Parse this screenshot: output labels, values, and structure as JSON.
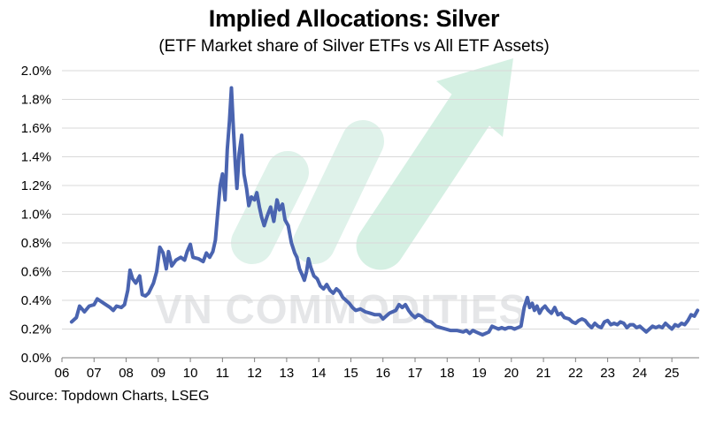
{
  "watermark": {
    "text": "VN COMMODITIES",
    "arrow_color": "#d5f0e3",
    "bar_color": "#dff2ea"
  },
  "chart_data": {
    "type": "line",
    "title": "Implied Allocations: Silver",
    "subtitle": "(ETF Market share of Silver ETFs vs All ETF Assets)",
    "source": "Source: Topdown Charts, LSEG",
    "xlabel": "",
    "ylabel": "",
    "xlim": [
      2006,
      2025.85
    ],
    "ylim": [
      0,
      0.02
    ],
    "x_ticks": [
      "06",
      "07",
      "08",
      "09",
      "10",
      "11",
      "12",
      "13",
      "14",
      "15",
      "16",
      "17",
      "18",
      "19",
      "20",
      "21",
      "22",
      "23",
      "24",
      "25"
    ],
    "y_ticks": [
      "0.0%",
      "0.2%",
      "0.4%",
      "0.6%",
      "0.8%",
      "1.0%",
      "1.2%",
      "1.4%",
      "1.6%",
      "1.8%",
      "2.0%"
    ],
    "y_tick_values": [
      0,
      0.002,
      0.004,
      0.006,
      0.008,
      0.01,
      0.012,
      0.014,
      0.016,
      0.018,
      0.02
    ],
    "grid": true,
    "legend": "none",
    "series": [
      {
        "color": "#4a64b0",
        "points": [
          [
            2006.3,
            0.0025
          ],
          [
            2006.45,
            0.0028
          ],
          [
            2006.55,
            0.0036
          ],
          [
            2006.7,
            0.0032
          ],
          [
            2006.85,
            0.0036
          ],
          [
            2007.0,
            0.0037
          ],
          [
            2007.1,
            0.0041
          ],
          [
            2007.3,
            0.0038
          ],
          [
            2007.5,
            0.0035
          ],
          [
            2007.6,
            0.0033
          ],
          [
            2007.7,
            0.0036
          ],
          [
            2007.85,
            0.0035
          ],
          [
            2007.95,
            0.0037
          ],
          [
            2008.05,
            0.0047
          ],
          [
            2008.12,
            0.0061
          ],
          [
            2008.2,
            0.0055
          ],
          [
            2008.3,
            0.0052
          ],
          [
            2008.42,
            0.0057
          ],
          [
            2008.5,
            0.0044
          ],
          [
            2008.6,
            0.0043
          ],
          [
            2008.7,
            0.0045
          ],
          [
            2008.85,
            0.0052
          ],
          [
            2008.95,
            0.006
          ],
          [
            2009.05,
            0.0077
          ],
          [
            2009.15,
            0.0073
          ],
          [
            2009.25,
            0.0062
          ],
          [
            2009.32,
            0.0074
          ],
          [
            2009.42,
            0.0064
          ],
          [
            2009.55,
            0.0068
          ],
          [
            2009.7,
            0.007
          ],
          [
            2009.82,
            0.0068
          ],
          [
            2009.9,
            0.0074
          ],
          [
            2010.0,
            0.0079
          ],
          [
            2010.08,
            0.007
          ],
          [
            2010.25,
            0.0069
          ],
          [
            2010.4,
            0.0067
          ],
          [
            2010.5,
            0.0073
          ],
          [
            2010.6,
            0.007
          ],
          [
            2010.7,
            0.0074
          ],
          [
            2010.78,
            0.0082
          ],
          [
            2010.85,
            0.01
          ],
          [
            2010.93,
            0.012
          ],
          [
            2011.0,
            0.0128
          ],
          [
            2011.08,
            0.011
          ],
          [
            2011.15,
            0.0145
          ],
          [
            2011.22,
            0.0165
          ],
          [
            2011.28,
            0.0188
          ],
          [
            2011.34,
            0.016
          ],
          [
            2011.4,
            0.0135
          ],
          [
            2011.45,
            0.0118
          ],
          [
            2011.52,
            0.0142
          ],
          [
            2011.6,
            0.0155
          ],
          [
            2011.67,
            0.0128
          ],
          [
            2011.75,
            0.0118
          ],
          [
            2011.82,
            0.0106
          ],
          [
            2011.9,
            0.0112
          ],
          [
            2012.0,
            0.011
          ],
          [
            2012.07,
            0.0115
          ],
          [
            2012.15,
            0.0105
          ],
          [
            2012.22,
            0.0098
          ],
          [
            2012.3,
            0.0092
          ],
          [
            2012.4,
            0.0099
          ],
          [
            2012.5,
            0.0105
          ],
          [
            2012.6,
            0.0095
          ],
          [
            2012.7,
            0.011
          ],
          [
            2012.78,
            0.0103
          ],
          [
            2012.87,
            0.0107
          ],
          [
            2012.95,
            0.0096
          ],
          [
            2013.05,
            0.0092
          ],
          [
            2013.15,
            0.008
          ],
          [
            2013.25,
            0.0073
          ],
          [
            2013.32,
            0.007
          ],
          [
            2013.4,
            0.0062
          ],
          [
            2013.48,
            0.0058
          ],
          [
            2013.55,
            0.0054
          ],
          [
            2013.62,
            0.006
          ],
          [
            2013.68,
            0.0069
          ],
          [
            2013.75,
            0.0063
          ],
          [
            2013.85,
            0.0057
          ],
          [
            2013.95,
            0.0055
          ],
          [
            2014.05,
            0.005
          ],
          [
            2014.15,
            0.0048
          ],
          [
            2014.25,
            0.0051
          ],
          [
            2014.35,
            0.0047
          ],
          [
            2014.45,
            0.0045
          ],
          [
            2014.55,
            0.0048
          ],
          [
            2014.65,
            0.0046
          ],
          [
            2014.75,
            0.0042
          ],
          [
            2014.85,
            0.004
          ],
          [
            2014.95,
            0.0038
          ],
          [
            2015.05,
            0.0035
          ],
          [
            2015.15,
            0.0033
          ],
          [
            2015.3,
            0.0034
          ],
          [
            2015.45,
            0.0032
          ],
          [
            2015.6,
            0.0031
          ],
          [
            2015.75,
            0.003
          ],
          [
            2015.9,
            0.003
          ],
          [
            2016.0,
            0.0027
          ],
          [
            2016.1,
            0.0029
          ],
          [
            2016.2,
            0.0031
          ],
          [
            2016.3,
            0.0032
          ],
          [
            2016.4,
            0.0033
          ],
          [
            2016.5,
            0.0037
          ],
          [
            2016.6,
            0.0035
          ],
          [
            2016.7,
            0.0037
          ],
          [
            2016.8,
            0.0033
          ],
          [
            2016.9,
            0.003
          ],
          [
            2017.0,
            0.0028
          ],
          [
            2017.1,
            0.003
          ],
          [
            2017.2,
            0.0029
          ],
          [
            2017.35,
            0.0026
          ],
          [
            2017.5,
            0.0025
          ],
          [
            2017.65,
            0.0022
          ],
          [
            2017.8,
            0.0021
          ],
          [
            2017.95,
            0.002
          ],
          [
            2018.1,
            0.0019
          ],
          [
            2018.3,
            0.0019
          ],
          [
            2018.5,
            0.0018
          ],
          [
            2018.6,
            0.0019
          ],
          [
            2018.7,
            0.0017
          ],
          [
            2018.8,
            0.0019
          ],
          [
            2018.9,
            0.0018
          ],
          [
            2019.0,
            0.0017
          ],
          [
            2019.1,
            0.0016
          ],
          [
            2019.2,
            0.0017
          ],
          [
            2019.3,
            0.0018
          ],
          [
            2019.4,
            0.0022
          ],
          [
            2019.5,
            0.0021
          ],
          [
            2019.6,
            0.002
          ],
          [
            2019.7,
            0.0021
          ],
          [
            2019.8,
            0.002
          ],
          [
            2019.9,
            0.0021
          ],
          [
            2020.0,
            0.0021
          ],
          [
            2020.1,
            0.002
          ],
          [
            2020.2,
            0.0021
          ],
          [
            2020.3,
            0.0022
          ],
          [
            2020.4,
            0.0035
          ],
          [
            2020.5,
            0.0042
          ],
          [
            2020.57,
            0.0035
          ],
          [
            2020.65,
            0.0038
          ],
          [
            2020.72,
            0.0033
          ],
          [
            2020.8,
            0.0036
          ],
          [
            2020.88,
            0.0031
          ],
          [
            2020.95,
            0.0034
          ],
          [
            2021.05,
            0.0036
          ],
          [
            2021.15,
            0.0033
          ],
          [
            2021.25,
            0.0031
          ],
          [
            2021.35,
            0.0035
          ],
          [
            2021.45,
            0.003
          ],
          [
            2021.55,
            0.0031
          ],
          [
            2021.65,
            0.0028
          ],
          [
            2021.8,
            0.0027
          ],
          [
            2021.9,
            0.0025
          ],
          [
            2022.0,
            0.0024
          ],
          [
            2022.1,
            0.0026
          ],
          [
            2022.2,
            0.0027
          ],
          [
            2022.3,
            0.0026
          ],
          [
            2022.4,
            0.0023
          ],
          [
            2022.5,
            0.0021
          ],
          [
            2022.6,
            0.0024
          ],
          [
            2022.7,
            0.0022
          ],
          [
            2022.8,
            0.0021
          ],
          [
            2022.9,
            0.0025
          ],
          [
            2023.0,
            0.0026
          ],
          [
            2023.1,
            0.0023
          ],
          [
            2023.2,
            0.0024
          ],
          [
            2023.3,
            0.0023
          ],
          [
            2023.4,
            0.0025
          ],
          [
            2023.5,
            0.0024
          ],
          [
            2023.6,
            0.0021
          ],
          [
            2023.7,
            0.0023
          ],
          [
            2023.8,
            0.0023
          ],
          [
            2023.9,
            0.0021
          ],
          [
            2024.0,
            0.0022
          ],
          [
            2024.1,
            0.002
          ],
          [
            2024.2,
            0.0018
          ],
          [
            2024.3,
            0.002
          ],
          [
            2024.4,
            0.0022
          ],
          [
            2024.5,
            0.0021
          ],
          [
            2024.6,
            0.0022
          ],
          [
            2024.7,
            0.0021
          ],
          [
            2024.8,
            0.0024
          ],
          [
            2024.9,
            0.0022
          ],
          [
            2025.0,
            0.002
          ],
          [
            2025.1,
            0.0023
          ],
          [
            2025.2,
            0.0022
          ],
          [
            2025.3,
            0.0024
          ],
          [
            2025.4,
            0.0023
          ],
          [
            2025.5,
            0.0026
          ],
          [
            2025.6,
            0.003
          ],
          [
            2025.7,
            0.0029
          ],
          [
            2025.8,
            0.0033
          ]
        ]
      }
    ]
  }
}
